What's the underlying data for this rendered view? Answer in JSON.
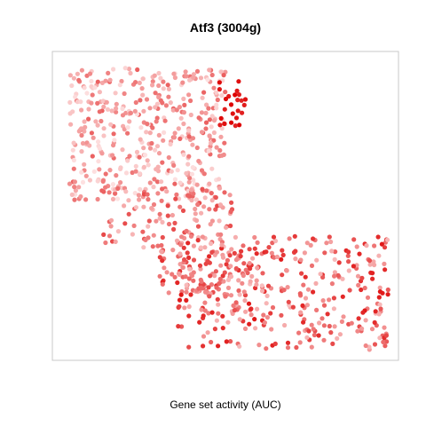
{
  "chart_data": {
    "type": "scatter",
    "title": "Atf3 (3004g)",
    "xlabel": "Gene set activity (AUC)",
    "ylabel": "",
    "xlim": [
      0,
      1
    ],
    "ylim": [
      0,
      1
    ],
    "grid": false,
    "axes_ticks": false,
    "point_color_low": "#ffeeee",
    "point_color_high": "#dd0000",
    "color_meaning": "gene set activity (AUC), light = low, red = high",
    "density_regions": [
      {
        "x": [
          0.04,
          0.5
        ],
        "y": [
          0.52,
          0.96
        ],
        "n": 420,
        "auc": [
          0.05,
          0.6
        ]
      },
      {
        "x": [
          0.14,
          0.52
        ],
        "y": [
          0.36,
          0.56
        ],
        "n": 120,
        "auc": [
          0.2,
          0.7
        ]
      },
      {
        "x": [
          0.3,
          0.62
        ],
        "y": [
          0.2,
          0.36
        ],
        "n": 110,
        "auc": [
          0.3,
          0.85
        ]
      },
      {
        "x": [
          0.36,
          0.98
        ],
        "y": [
          0.02,
          0.4
        ],
        "n": 330,
        "auc": [
          0.2,
          0.9
        ]
      },
      {
        "x": [
          0.48,
          0.56
        ],
        "y": [
          0.76,
          0.92
        ],
        "n": 25,
        "auc": [
          0.85,
          1.0
        ]
      }
    ]
  }
}
